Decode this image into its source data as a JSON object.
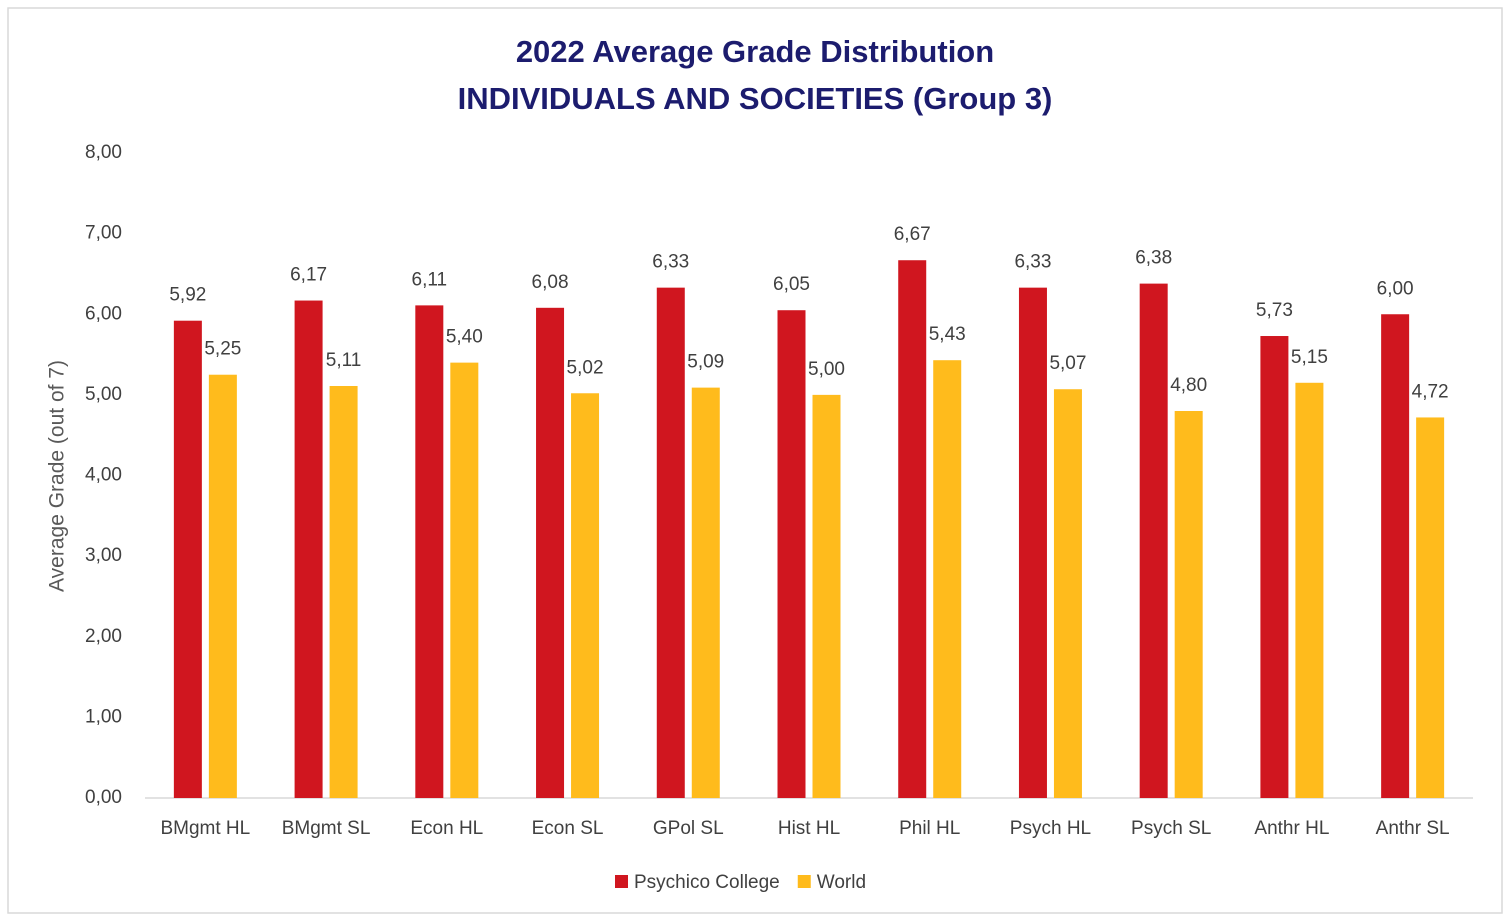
{
  "chart_data": {
    "type": "bar",
    "title": "2022 Average Grade Distribution",
    "subtitle": "INDIVIDUALS AND SOCIETIES (Group 3)",
    "ylabel": "Average Grade (out of 7)",
    "categories": [
      "BMgmt HL",
      "BMgmt SL",
      "Econ HL",
      "Econ SL",
      "GPol SL",
      "Hist HL",
      "Phil HL",
      "Psych HL",
      "Psych SL",
      "Anthr HL",
      "Anthr SL"
    ],
    "series": [
      {
        "name": "Psychico College",
        "color": "#d0161f",
        "values": [
          5.92,
          6.17,
          6.11,
          6.08,
          6.33,
          6.05,
          6.67,
          6.33,
          6.38,
          5.73,
          6.0
        ],
        "value_labels": [
          "5,92",
          "6,17",
          "6,11",
          "6,08",
          "6,33",
          "6,05",
          "6,67",
          "6,33",
          "6,38",
          "5,73",
          "6,00"
        ]
      },
      {
        "name": "World",
        "color": "#ffbb1c",
        "values": [
          5.25,
          5.11,
          5.4,
          5.02,
          5.09,
          5.0,
          5.43,
          5.07,
          4.8,
          5.15,
          4.72
        ],
        "value_labels": [
          "5,25",
          "5,11",
          "5,40",
          "5,02",
          "5,09",
          "5,00",
          "5,43",
          "5,07",
          "4,80",
          "5,15",
          "4,72"
        ]
      }
    ],
    "ylim": [
      0,
      8
    ],
    "yticks": [
      {
        "value": 0,
        "label": "0,00"
      },
      {
        "value": 1,
        "label": "1,00"
      },
      {
        "value": 2,
        "label": "2,00"
      },
      {
        "value": 3,
        "label": "3,00"
      },
      {
        "value": 4,
        "label": "4,00"
      },
      {
        "value": 5,
        "label": "5,00"
      },
      {
        "value": 6,
        "label": "6,00"
      },
      {
        "value": 7,
        "label": "7,00"
      },
      {
        "value": 8,
        "label": "8,00"
      }
    ],
    "grid": false,
    "legend": "bottom"
  }
}
